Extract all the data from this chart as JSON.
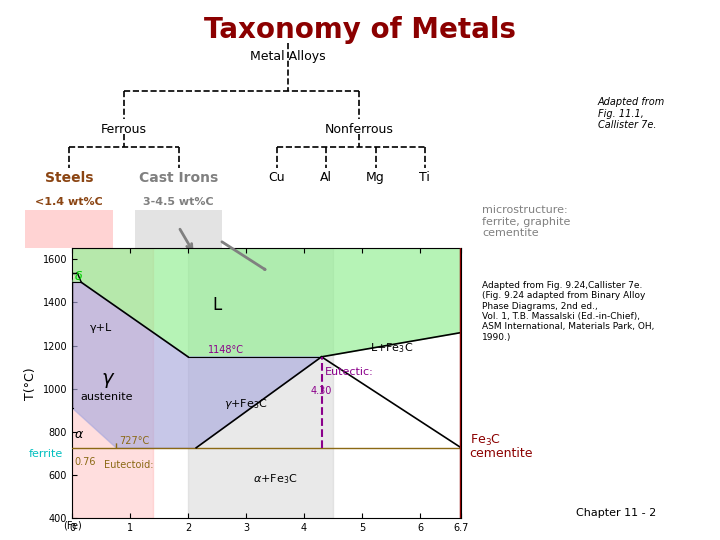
{
  "title": "Taxonomy of Metals",
  "title_color": "#8B0000",
  "bg_color": "#ffffff",
  "subtitle": "Metal Alloys",
  "ferrous_label": "Ferrous",
  "nonferrous_label": "Nonferrous",
  "steels_label": "Steels",
  "steels_sub": "<1.4 wt%C",
  "cast_irons_label": "Cast Irons",
  "cast_irons_sub": "3-4.5 wt%C",
  "nonferrous_items": [
    "Cu",
    "Al",
    "Mg",
    "Ti"
  ],
  "adapted_text1": "Adapted from\nFig. 11.1,\nCallister 7e.",
  "microstructure_text": "microstructure:\nferrite, graphite\ncementite",
  "adapted_text2": "Adapted from Fig. 9.24,Callister 7e.\n(Fig. 9.24 adapted from Binary Alloy\nPhase Diagrams, 2nd ed.,\nVol. 1, T.B. Massalski (Ed.-in-Chief),\nASM International, Materials Park, OH,\n1990.)",
  "chapter_text": "Chapter 11 - 2",
  "fe3c_label": "Fe₃C",
  "cementite_label": "cementite",
  "ferrite_label": "ferrite",
  "eutectoid_label": "Eutectoid:",
  "eutectic_label": "Eutectic:",
  "austenite_label": "austenite",
  "temp_727": "727°C",
  "temp_1148": "1148°C",
  "eutectoid_C": "0.76",
  "eutectic_C": "4.30",
  "phase_L": "L",
  "phase_gamma_L": "γ+L",
  "phase_gamma": "γ",
  "phase_gamma_Fe3C": "γ+Fe₃C",
  "phase_alpha_Fe3C": "α+Fe₃C",
  "phase_delta": "δ",
  "phase_alpha": "α",
  "colors": {
    "steels_fill": "#FFB6B6",
    "cast_fill": "#C8C8C8",
    "region_green": "#90EE90",
    "region_blue": "#AAAADD",
    "region_pink": "#FFB6B6",
    "region_gray": "#C8C8C8",
    "line_727": "#8B6914",
    "line_eutectic": "#8B008B",
    "arrow_fe3c": "#8B0000",
    "text_ferrite": "#00BFBF",
    "text_steels": "#8B4513",
    "text_cast": "#808080",
    "text_eutectic": "#8B008B",
    "delta_color": "#00CC00",
    "alpha_color": "#00BFBF"
  }
}
